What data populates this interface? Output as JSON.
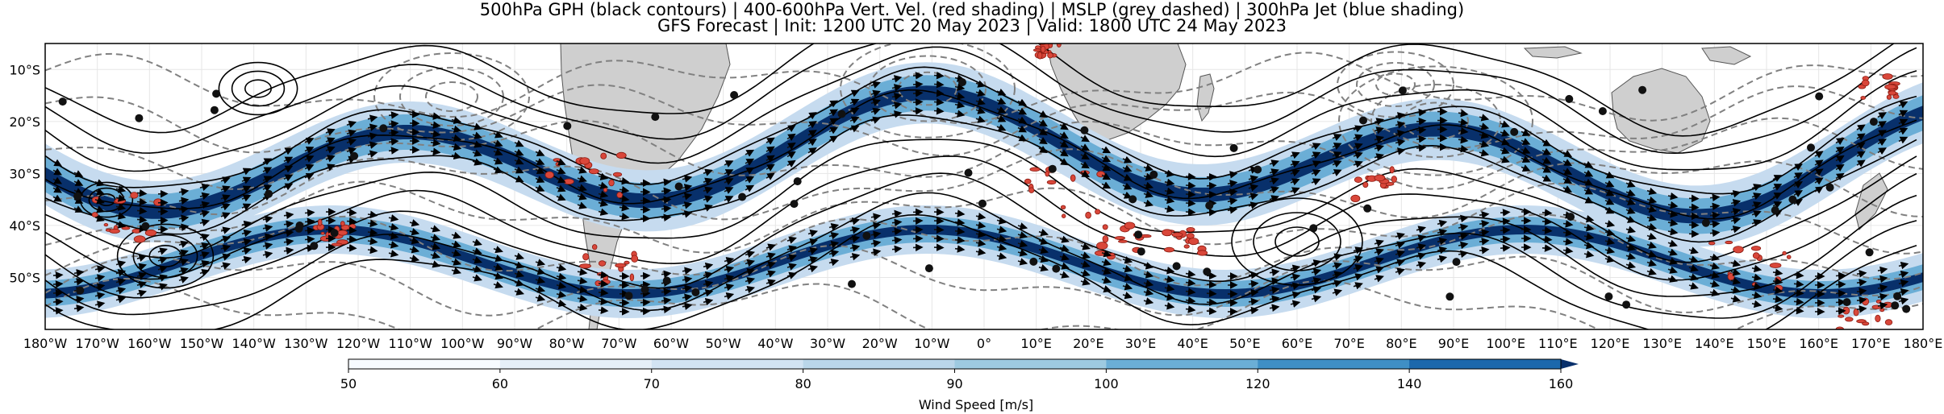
{
  "title": {
    "line1": "500hPa GPH (black contours) | 400-600hPa Vert. Vel. (red shading) | MSLP (grey dashed) | 300hPa Jet (blue shading)",
    "line2": "GFS Forecast | Init: 1200 UTC 20 May 2023 | Valid: 1800 UTC 24 May 2023"
  },
  "map": {
    "lon_labels": [
      "180°W",
      "170°W",
      "160°W",
      "150°W",
      "140°W",
      "130°W",
      "120°W",
      "110°W",
      "100°W",
      "90°W",
      "80°W",
      "70°W",
      "60°W",
      "50°W",
      "40°W",
      "30°W",
      "20°W",
      "10°W",
      "0°",
      "10°E",
      "20°E",
      "30°E",
      "40°E",
      "50°E",
      "60°E",
      "70°E",
      "80°E",
      "90°E",
      "100°E",
      "110°E",
      "120°E",
      "130°E",
      "140°E",
      "150°E",
      "160°E",
      "170°E",
      "180°E"
    ],
    "lat_labels": [
      "10°S",
      "20°S",
      "30°S",
      "40°S",
      "50°S"
    ],
    "lat_values": [
      -10,
      -20,
      -30,
      -40,
      -50
    ],
    "lat_range": [
      -60,
      -5
    ],
    "lon_range": [
      -180,
      180
    ],
    "colors": {
      "land": "#cfcfcf",
      "gph_contour": "#000000",
      "mslp_contour": "#808080",
      "vertical_velocity": "#d9473a",
      "jet_light": "#c6dbef",
      "jet_mid": "#6baed6",
      "jet_dark": "#08306b"
    },
    "layers": {
      "land": "land-masses",
      "jet": "300hPa-jet-shading",
      "vertical_velocity": "vertical-velocity-shading",
      "gph": "500hPa-gph-contours",
      "mslp": "mslp-contours",
      "wind": "wind-vectors",
      "markers": "point-markers"
    }
  },
  "colorbar": {
    "label": "Wind Speed [m/s]",
    "ticks": [
      "50",
      "60",
      "70",
      "80",
      "90",
      "100",
      "120",
      "140",
      "160"
    ],
    "levels": [
      50,
      60,
      70,
      80,
      90,
      100,
      120,
      140,
      160
    ],
    "colors": [
      "#f7fbff",
      "#e6eff8",
      "#d2e3f3",
      "#bad6ea",
      "#9ecae1",
      "#6baed6",
      "#3f8fc5",
      "#1c68ac",
      "#08306b"
    ]
  }
}
